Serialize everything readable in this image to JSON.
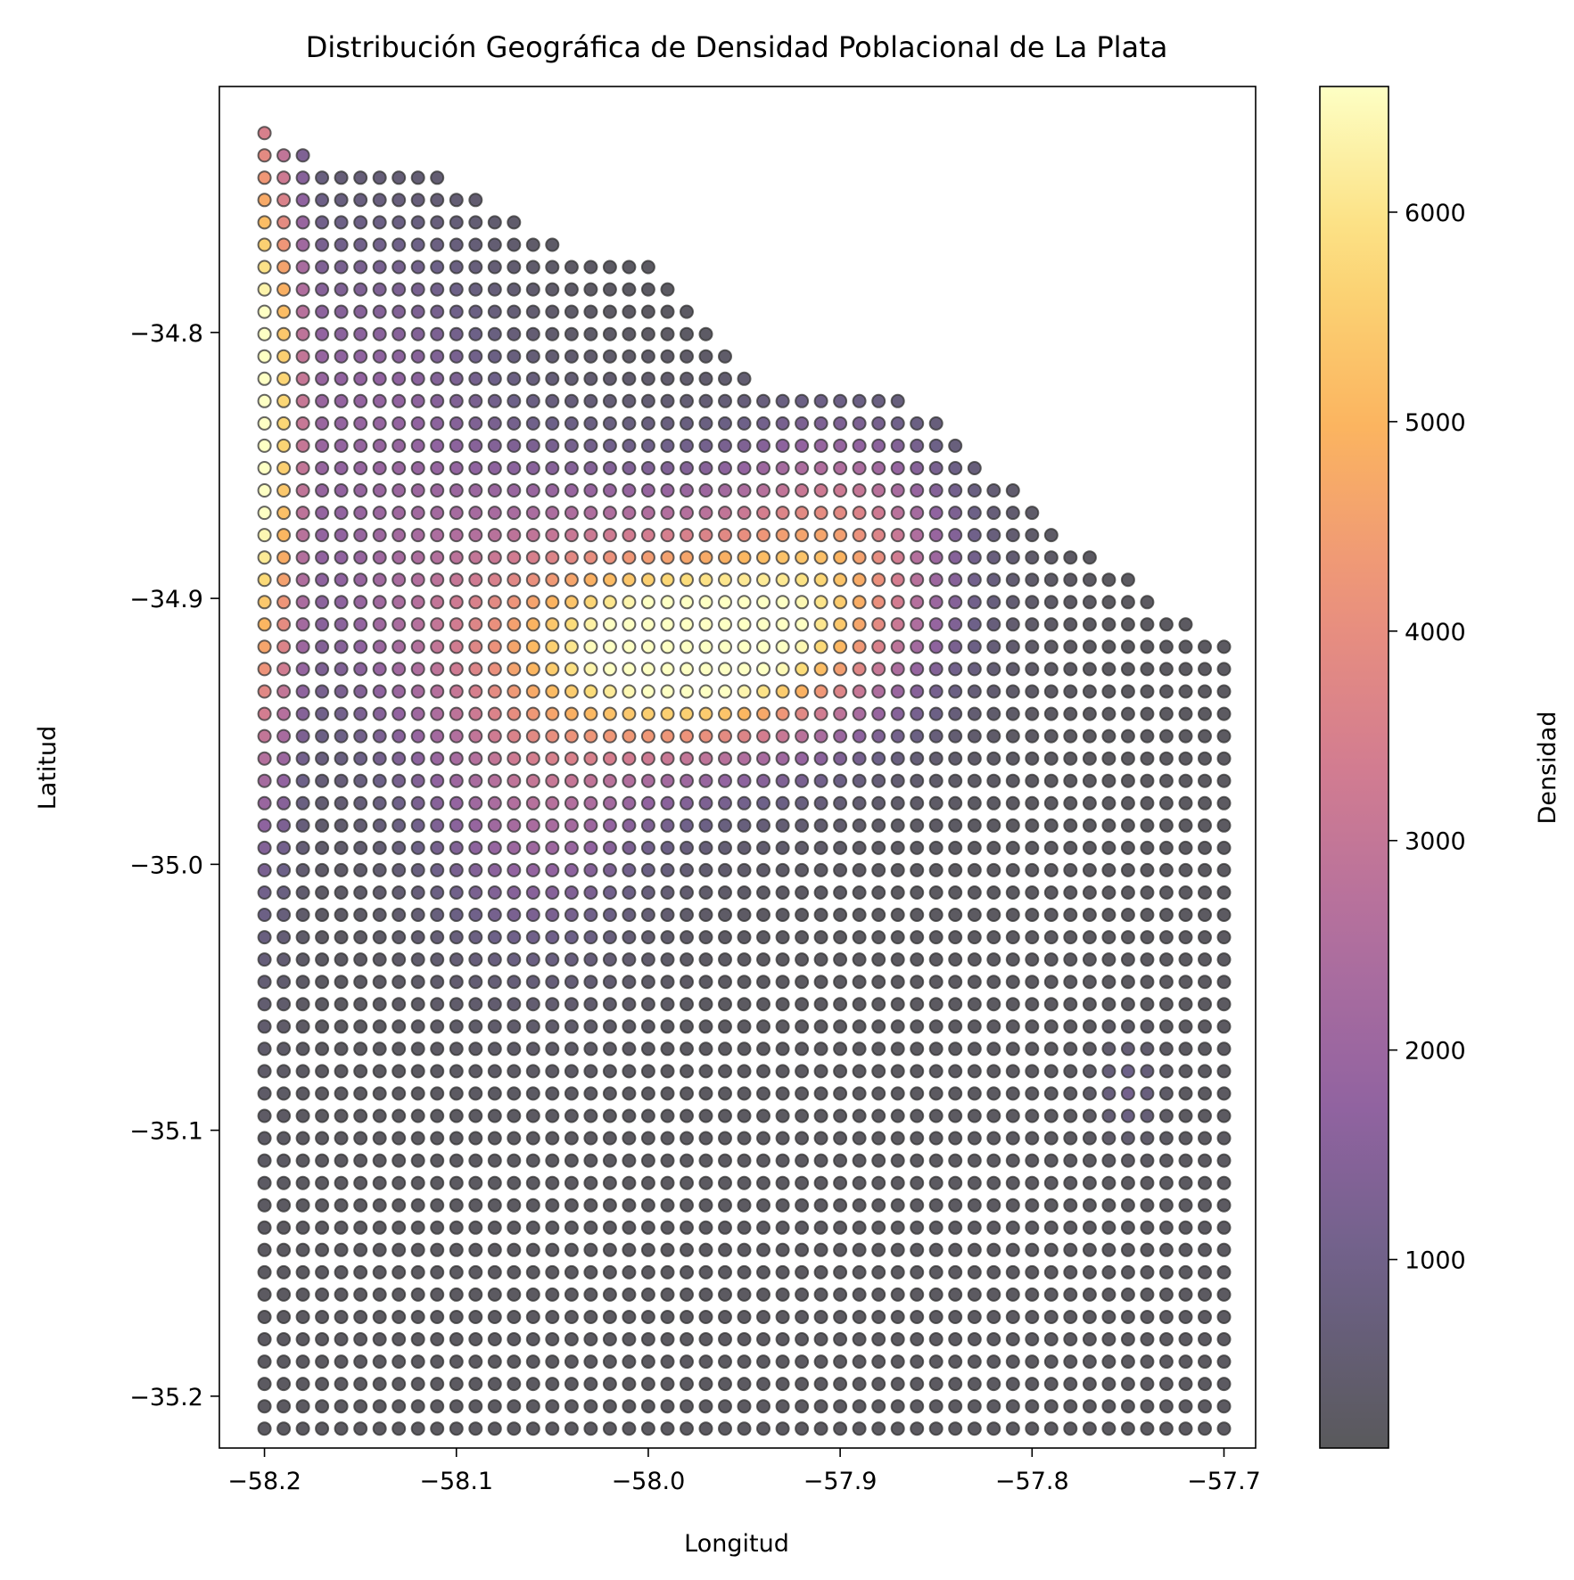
{
  "chart_data": {
    "type": "scatter",
    "title": "Distribución Geográfica de Densidad Poblacional de La Plata",
    "xlabel": "Longitud",
    "ylabel": "Latitud",
    "xlim": [
      -58.2235,
      -57.6835
    ],
    "ylim": [
      -35.2195,
      -34.7075
    ],
    "x_ticks": [
      -58.2,
      -58.1,
      -58.0,
      -57.9,
      -57.8,
      -57.7
    ],
    "x_tick_labels": [
      "−58.2",
      "−58.1",
      "−58.0",
      "−57.9",
      "−57.8",
      "−57.7"
    ],
    "y_ticks": [
      -34.8,
      -34.9,
      -35.0,
      -35.1,
      -35.2
    ],
    "y_tick_labels": [
      "−34.8",
      "−34.9",
      "−35.0",
      "−35.1",
      "−35.2"
    ],
    "grid": false,
    "colormap": "inferno",
    "point_alpha": 0.65,
    "point_edge_color": "#333333",
    "colorbar": {
      "label": "Densidad",
      "range": [
        100,
        6600
      ],
      "ticks": [
        1000,
        2000,
        3000,
        4000,
        5000,
        6000
      ],
      "tick_labels": [
        "1000",
        "2000",
        "3000",
        "4000",
        "5000",
        "6000"
      ],
      "placement": "right"
    },
    "grid_points": {
      "lon_start": -58.2,
      "lon_step": 0.01,
      "lon_count": 51,
      "lat_start": -34.725,
      "lat_step": -0.0084,
      "lat_count": 59,
      "row_lon_max": [
        -58.2,
        -58.18,
        -58.11,
        -58.09,
        -58.07,
        -58.05,
        -58.0,
        -57.99,
        -57.98,
        -57.97,
        -57.96,
        -57.95,
        -57.87,
        -57.85,
        -57.84,
        -57.83,
        -57.81,
        -57.8,
        -57.79,
        -57.77,
        -57.75,
        -57.74,
        -57.72,
        -57.7
      ]
    },
    "density_hotspots": [
      {
        "lon": -58.2,
        "lat": -34.83,
        "peak": 6200,
        "spread_lon": 0.012,
        "spread_lat": 0.09
      },
      {
        "lon": -57.965,
        "lat": -34.92,
        "peak": 5500,
        "spread_lon": 0.055,
        "spread_lat": 0.025
      },
      {
        "lon": -58.04,
        "lat": -34.91,
        "peak": 3300,
        "spread_lon": 0.08,
        "spread_lat": 0.04
      },
      {
        "lon": -57.9,
        "lat": -34.88,
        "peak": 3200,
        "spread_lon": 0.04,
        "spread_lat": 0.03
      },
      {
        "lon": -58.06,
        "lat": -34.98,
        "peak": 1600,
        "spread_lon": 0.04,
        "spread_lat": 0.04
      },
      {
        "lon": -58.15,
        "lat": -34.82,
        "peak": 1500,
        "spread_lon": 0.05,
        "spread_lat": 0.05
      },
      {
        "lon": -57.75,
        "lat": -35.085,
        "peak": 900,
        "spread_lon": 0.01,
        "spread_lat": 0.012
      }
    ],
    "base_density": 200
  }
}
